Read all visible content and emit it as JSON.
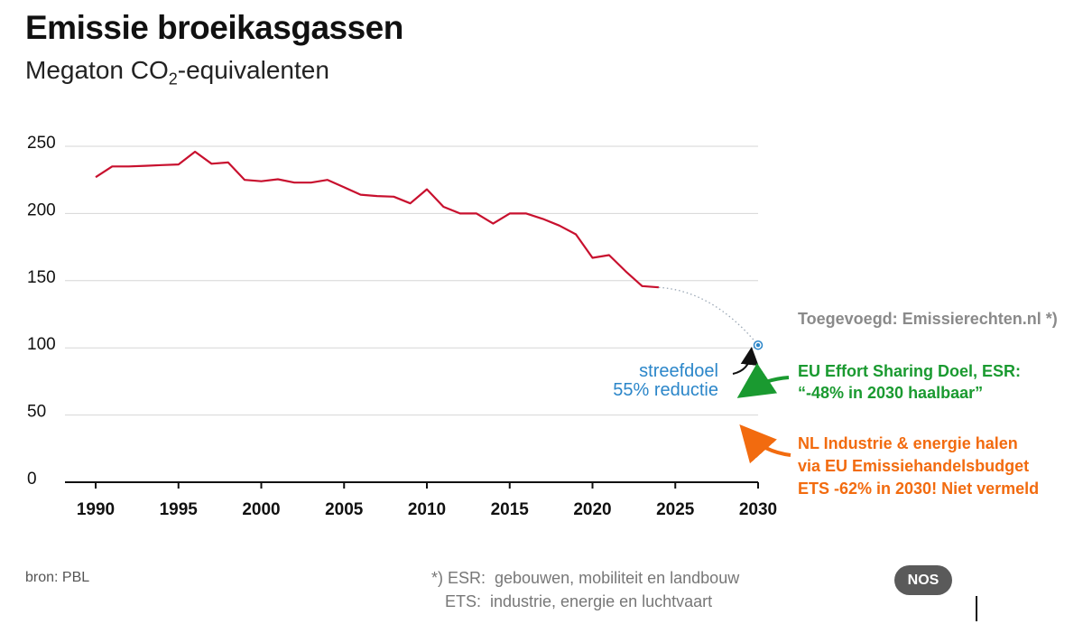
{
  "header": {
    "title": "Emissie broeikasgassen",
    "subtitle_prefix": "Megaton CO",
    "subtitle_sub": "2",
    "subtitle_suffix": "-equivalenten"
  },
  "chart_data": {
    "type": "line",
    "title": "Emissie broeikasgassen",
    "subtitle": "Megaton CO₂-equivalenten",
    "xlim": [
      1990,
      2030
    ],
    "ylim": [
      0,
      250
    ],
    "x_ticks": [
      "1990",
      "1995",
      "2000",
      "2005",
      "2010",
      "2015",
      "2020",
      "2025",
      "2030"
    ],
    "y_ticks": [
      "0",
      "50",
      "100",
      "150",
      "200",
      "250"
    ],
    "grid": true,
    "series": [
      {
        "color": "#c8102e",
        "x": [
          1990,
          1991,
          1992,
          1993,
          1994,
          1995,
          1996,
          1997,
          1998,
          1999,
          2000,
          2001,
          2002,
          2003,
          2004,
          2005,
          2006,
          2007,
          2008,
          2009,
          2010,
          2011,
          2012,
          2013,
          2014,
          2015,
          2016,
          2017,
          2018,
          2019,
          2020,
          2021,
          2022,
          2023,
          2024
        ],
        "y": [
          227,
          235,
          235,
          235.5,
          236,
          236.5,
          246,
          237,
          238,
          225,
          224,
          225.5,
          223,
          223,
          225,
          219.5,
          214,
          213,
          212.5,
          207.5,
          218,
          205,
          200,
          200,
          192.5,
          200,
          200,
          196,
          191,
          184.5,
          167,
          169,
          157,
          146,
          145
        ]
      }
    ],
    "projection": {
      "from": [
        2024,
        145
      ],
      "to": [
        2030,
        102
      ],
      "color": "#9aa7b5",
      "style": "dotted"
    },
    "target_point": {
      "x": 2030,
      "y": 102,
      "color": "#2b86c9"
    },
    "annotations": {
      "target_line1": "streefdoel",
      "target_line2": "55% reductie",
      "added_by": "Toegevoegd: Emissierechten.nl *)",
      "esr_line1": "EU Effort Sharing Doel, ESR:",
      "esr_line2": "“-48% in 2030 haalbaar”",
      "ets_line1": "NL Industrie & energie halen",
      "ets_line2": "via EU Emissiehandelsbudget",
      "ets_line3": "ETS -62% in 2030! Niet vermeld"
    },
    "colors": {
      "target": "#2b86c9",
      "esr": "#1a9a30",
      "ets": "#f26b0f",
      "note": "#8a8a8a"
    }
  },
  "footer": {
    "source": "bron: PBL",
    "footnote_line1": "*) ESR:  gebouwen, mobiliteit en landbouw",
    "footnote_line2": "   ETS:  industrie, energie en luchtvaart",
    "logo": "NOS"
  }
}
